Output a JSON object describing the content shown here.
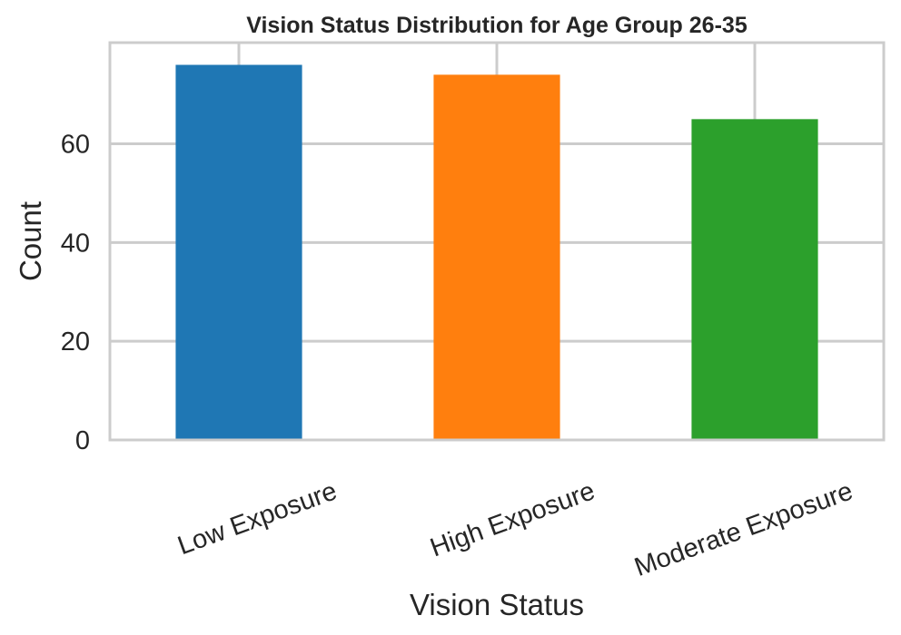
{
  "chart_data": {
    "type": "bar",
    "title": "Vision Status Distribution for Age Group 26-35",
    "xlabel": "Vision Status",
    "ylabel": "Count",
    "categories": [
      "Low Exposure",
      "High Exposure",
      "Moderate Exposure"
    ],
    "values": [
      76,
      74,
      65
    ],
    "colors": [
      "#1f77b4",
      "#ff7f0e",
      "#2ca02c"
    ],
    "ylim": [
      0,
      80.5
    ],
    "yticks": [
      0,
      20,
      40,
      60
    ],
    "grid": true,
    "legend": "none"
  }
}
